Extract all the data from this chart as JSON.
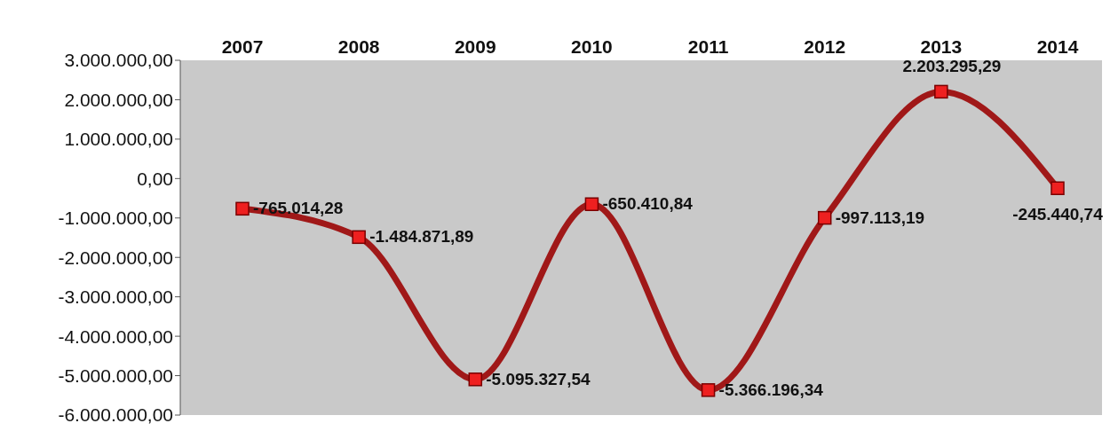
{
  "chart_data": {
    "type": "line",
    "categories": [
      "2007",
      "2008",
      "2009",
      "2010",
      "2011",
      "2012",
      "2013",
      "2014"
    ],
    "values": [
      -765014.28,
      -1484871.89,
      -5095327.54,
      -650410.84,
      -5366196.34,
      -997113.19,
      2203295.29,
      -245440.74
    ],
    "value_labels": [
      "-765.014,28",
      "-1.484.871,89",
      "-5.095.327,54",
      "-650.410,84",
      "-5.366.196,34",
      "-997.113,19",
      "2.203.295,29",
      "-245.440,74"
    ],
    "color": "#a01818",
    "marker": "square",
    "line_style": "solid",
    "grid": false,
    "ylim": [
      -6000000,
      3000000
    ],
    "yticks": [
      {
        "value": 3000000,
        "label": "3.000.000,00"
      },
      {
        "value": 2000000,
        "label": "2.000.000,00"
      },
      {
        "value": 1000000,
        "label": "1.000.000,00"
      },
      {
        "value": 0,
        "label": "0,00"
      },
      {
        "value": -1000000,
        "label": "-1.000.000,00"
      },
      {
        "value": -2000000,
        "label": "-2.000.000,00"
      },
      {
        "value": -3000000,
        "label": "-3.000.000,00"
      },
      {
        "value": -4000000,
        "label": "-4.000.000,00"
      },
      {
        "value": -5000000,
        "label": "-5.000.000,00"
      },
      {
        "value": -6000000,
        "label": "-6.000.000,00"
      }
    ]
  }
}
